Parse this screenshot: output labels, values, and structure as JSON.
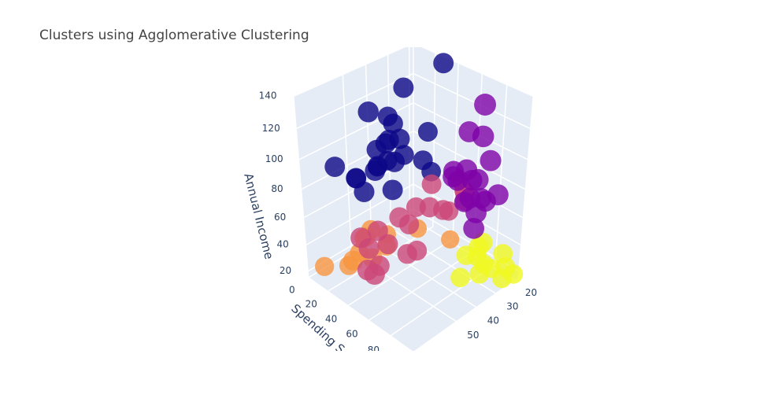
{
  "chart_data": {
    "type": "scatter3d",
    "title": "Clusters using Agglomerative Clustering",
    "yaxis_title": "Spending Score",
    "zaxis_title": "Annual Income",
    "xlim": [
      18,
      70
    ],
    "xticks": [
      20,
      30,
      40,
      50
    ],
    "ylim": [
      0,
      100
    ],
    "yticks": [
      0,
      20,
      40,
      60,
      80
    ],
    "zlim": [
      15,
      140
    ],
    "zticks": [
      20,
      40,
      60,
      80,
      100,
      120,
      140
    ],
    "grid": true,
    "series": [
      {
        "color": "#0d0887",
        "x": [
          19,
          32,
          47,
          35,
          40,
          43,
          45,
          33,
          41,
          36,
          53,
          56,
          37,
          39,
          58,
          48,
          52,
          49,
          44,
          30,
          25,
          38,
          28
        ],
        "y": [
          29,
          18,
          16,
          14,
          20,
          23,
          35,
          5,
          10,
          26,
          15,
          29,
          12,
          28,
          6,
          39,
          13,
          25,
          17,
          32,
          27,
          4,
          36
        ],
        "z": [
          137,
          126,
          120,
          103,
          98,
          99,
          93,
          103,
          88,
          87,
          80,
          79,
          78,
          101,
          88,
          78,
          78,
          86,
          82,
          81,
          95,
          71,
          73
        ]
      },
      {
        "color": "#7e03a8",
        "x": [
          30,
          32,
          28,
          29,
          35,
          36,
          32,
          30,
          34,
          38,
          31,
          39,
          33,
          27,
          32,
          40,
          29
        ],
        "y": [
          83,
          86,
          68,
          88,
          79,
          90,
          63,
          97,
          81,
          93,
          77,
          75,
          92,
          58,
          73,
          95,
          82
        ],
        "z": [
          137,
          120,
          113,
          103,
          98,
          97,
          88,
          85,
          79,
          78,
          87,
          95,
          81,
          75,
          71,
          70,
          75
        ]
      },
      {
        "color": "#cc4778",
        "x": [
          20,
          45,
          65,
          23,
          54,
          68,
          31,
          47,
          60,
          21,
          50,
          38,
          67,
          27,
          57,
          40,
          63,
          19,
          49,
          35
        ],
        "y": [
          52,
          48,
          44,
          58,
          46,
          56,
          42,
          59,
          50,
          55,
          49,
          41,
          60,
          51,
          43,
          57,
          47,
          46,
          54,
          60
        ],
        "z": [
          60,
          55,
          62,
          63,
          48,
          48,
          69,
          43,
          40,
          54,
          65,
          58,
          46,
          50,
          59,
          67,
          54,
          64,
          40,
          62
        ]
      },
      {
        "color": "#f89540",
        "x": [
          19,
          35,
          64,
          45,
          58,
          52,
          46,
          49,
          31,
          63,
          56,
          48
        ],
        "y": [
          39,
          6,
          3,
          26,
          15,
          13,
          5,
          14,
          29,
          31,
          35,
          17
        ],
        "z": [
          15,
          18,
          19,
          28,
          20,
          23,
          25,
          33,
          30,
          37,
          34,
          39
        ]
      },
      {
        "color": "#f0f921",
        "x": [
          21,
          23,
          22,
          20,
          35,
          24,
          31,
          24,
          30,
          22,
          25,
          29
        ],
        "y": [
          81,
          94,
          76,
          99,
          77,
          73,
          87,
          98,
          73,
          92,
          79,
          82
        ],
        "z": [
          15,
          16,
          17,
          19,
          20,
          23,
          24,
          28,
          30,
          33,
          38,
          40
        ]
      }
    ]
  }
}
